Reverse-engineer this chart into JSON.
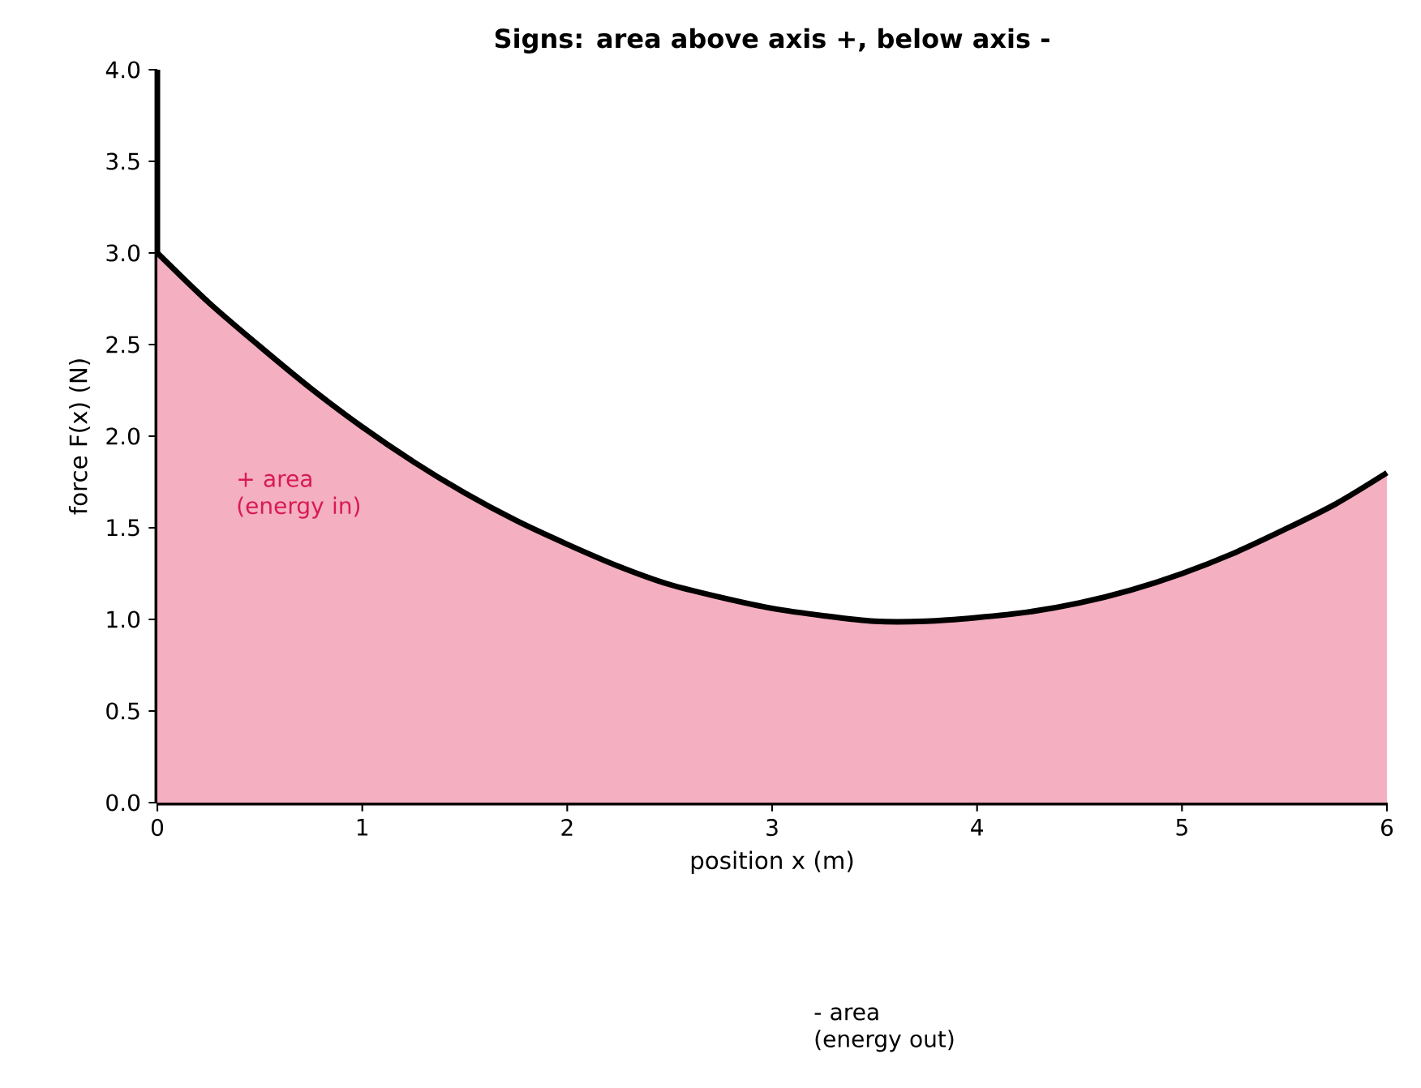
{
  "chart_data": {
    "type": "area",
    "title": "Signs: area above axis +, below axis -",
    "xlabel": "position x  (m)",
    "ylabel": "force F(x)  (N)",
    "x": [
      0,
      0.25,
      0.5,
      0.75,
      1,
      1.25,
      1.5,
      1.75,
      2,
      2.25,
      2.5,
      2.75,
      3,
      3.25,
      3.5,
      3.75,
      4,
      4.25,
      4.5,
      4.75,
      5,
      5.25,
      5.5,
      5.75,
      6
    ],
    "series": [
      {
        "color": "#f4afc0",
        "values": [
          3.0,
          2.73,
          2.49,
          2.26,
          2.05,
          1.86,
          1.69,
          1.54,
          1.41,
          1.29,
          1.19,
          1.12,
          1.06,
          1.02,
          0.99,
          0.99,
          1.01,
          1.04,
          1.09,
          1.16,
          1.25,
          1.36,
          1.49,
          1.63,
          1.8
        ]
      }
    ],
    "xlim": [
      0,
      6
    ],
    "ylim": [
      0,
      4
    ],
    "xticks": [
      0,
      1,
      2,
      3,
      4,
      5,
      6
    ],
    "yticks": [
      {
        "value": 0,
        "label": "0.0"
      },
      {
        "value": 0.5,
        "label": "0.5"
      },
      {
        "value": 1,
        "label": "1.0"
      },
      {
        "value": 1.5,
        "label": "1.5"
      },
      {
        "value": 2,
        "label": "2.0"
      },
      {
        "value": 2.5,
        "label": "2.5"
      },
      {
        "value": 3,
        "label": "3.0"
      },
      {
        "value": 3.5,
        "label": "3.5"
      },
      {
        "value": 4,
        "label": "4.0"
      }
    ],
    "annotations": [
      "+ area (energy in)",
      "- area (energy out)"
    ]
  }
}
